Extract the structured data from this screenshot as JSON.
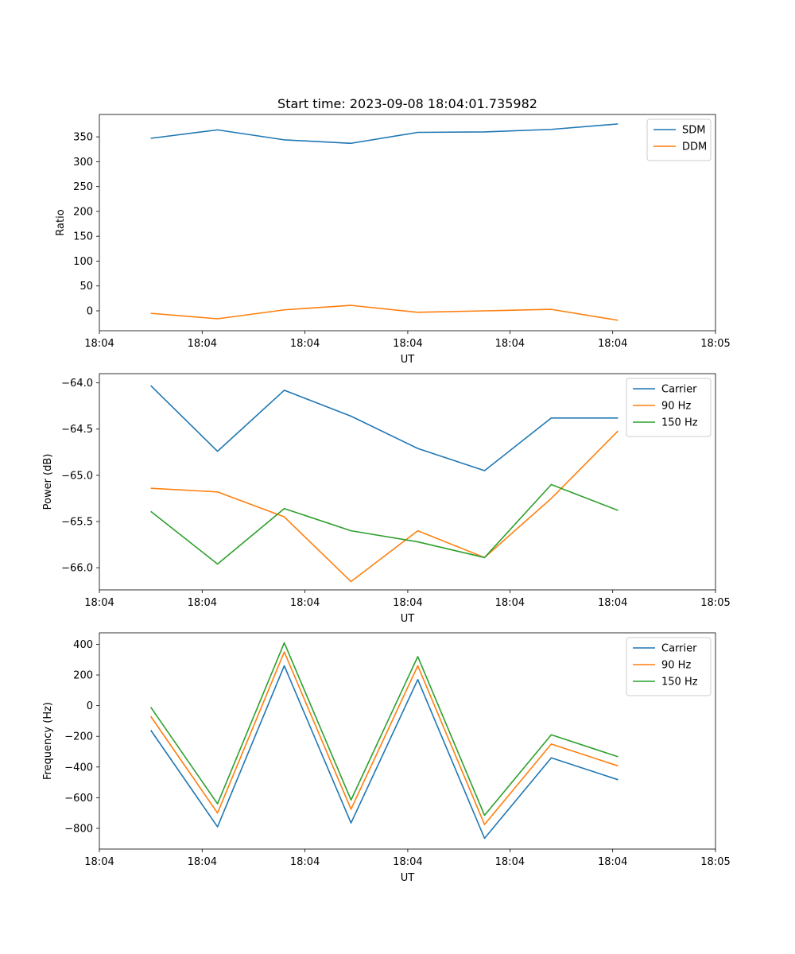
{
  "chart_data": [
    {
      "type": "line",
      "title": "Start time: 2023-09-08 18:04:01.735982",
      "xlabel": "UT",
      "ylabel": "Ratio",
      "x": [
        0,
        1,
        2,
        3,
        4,
        5,
        6,
        7
      ],
      "xlim": [
        -0.77,
        8.46
      ],
      "xticks": [
        -0.77,
        0.77,
        2.31,
        3.85,
        5.38,
        6.92,
        8.46
      ],
      "xtick_labels": [
        "18:04",
        "18:04",
        "18:04",
        "18:04",
        "18:04",
        "18:04",
        "18:05"
      ],
      "ylim": [
        -40,
        395
      ],
      "yticks": [
        0,
        50,
        100,
        150,
        200,
        250,
        300,
        350
      ],
      "legend_loc": "upper right",
      "series": [
        {
          "name": "SDM",
          "color": "#1f77b4",
          "values": [
            347,
            364,
            344,
            337,
            359,
            360,
            365,
            376
          ]
        },
        {
          "name": "DDM",
          "color": "#ff7f0e",
          "values": [
            -5,
            -16,
            2,
            11,
            -3,
            0,
            3,
            -19
          ]
        }
      ]
    },
    {
      "type": "line",
      "title": "",
      "xlabel": "UT",
      "ylabel": "Power (dB)",
      "x": [
        0,
        1,
        2,
        3,
        4,
        5,
        6,
        7
      ],
      "xlim": [
        -0.77,
        8.46
      ],
      "xticks": [
        -0.77,
        0.77,
        2.31,
        3.85,
        5.38,
        6.92,
        8.46
      ],
      "xtick_labels": [
        "18:04",
        "18:04",
        "18:04",
        "18:04",
        "18:04",
        "18:04",
        "18:05"
      ],
      "ylim": [
        -66.24,
        -63.9
      ],
      "yticks": [
        -66.0,
        -65.5,
        -65.0,
        -64.5,
        -64.0
      ],
      "ytick_labels": [
        "−66.0",
        "−65.5",
        "−65.0",
        "−64.5",
        "−64.0"
      ],
      "legend_loc": "upper right",
      "series": [
        {
          "name": "Carrier",
          "color": "#1f77b4",
          "values": [
            -64.03,
            -64.74,
            -64.08,
            -64.36,
            -64.71,
            -64.95,
            -64.38,
            -64.38
          ]
        },
        {
          "name": "90 Hz",
          "color": "#ff7f0e",
          "values": [
            -65.14,
            -65.18,
            -65.45,
            -66.15,
            -65.6,
            -65.89,
            -65.25,
            -64.52
          ]
        },
        {
          "name": "150 Hz",
          "color": "#2ca02c",
          "values": [
            -65.39,
            -65.96,
            -65.36,
            -65.6,
            -65.72,
            -65.89,
            -65.1,
            -65.38
          ]
        }
      ]
    },
    {
      "type": "line",
      "title": "",
      "xlabel": "UT",
      "ylabel": "Frequency (Hz)",
      "x": [
        0,
        1,
        2,
        3,
        4,
        5,
        6,
        7
      ],
      "xlim": [
        -0.77,
        8.46
      ],
      "xticks": [
        -0.77,
        0.77,
        2.31,
        3.85,
        5.38,
        6.92,
        8.46
      ],
      "xtick_labels": [
        "18:04",
        "18:04",
        "18:04",
        "18:04",
        "18:04",
        "18:04",
        "18:05"
      ],
      "ylim": [
        -935,
        475
      ],
      "yticks": [
        -800,
        -600,
        -400,
        -200,
        0,
        200,
        400
      ],
      "ytick_labels": [
        "−800",
        "−600",
        "−400",
        "−200",
        "0",
        "200",
        "400"
      ],
      "legend_loc": "upper right",
      "series": [
        {
          "name": "Carrier",
          "color": "#1f77b4",
          "values": [
            -160,
            -790,
            260,
            -765,
            170,
            -865,
            -340,
            -483
          ]
        },
        {
          "name": "90 Hz",
          "color": "#ff7f0e",
          "values": [
            -70,
            -700,
            350,
            -675,
            260,
            -775,
            -250,
            -393
          ]
        },
        {
          "name": "150 Hz",
          "color": "#2ca02c",
          "values": [
            -10,
            -640,
            410,
            -615,
            320,
            -715,
            -190,
            -333
          ]
        }
      ]
    }
  ]
}
